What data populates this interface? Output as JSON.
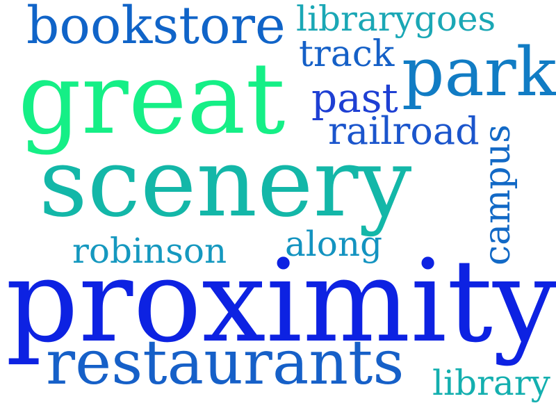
{
  "word_cloud": {
    "words": {
      "bookstore": {
        "text": "bookstore",
        "color": "#1064C8"
      },
      "librarygoes": {
        "text": "librarygoes",
        "color": "#1AA7B5"
      },
      "track": {
        "text": "track",
        "color": "#1560C7"
      },
      "park": {
        "text": "park",
        "color": "#117CC4"
      },
      "great": {
        "text": "great",
        "color": "#15EF86"
      },
      "past": {
        "text": "past",
        "color": "#1E3FD3"
      },
      "railroad": {
        "text": "railroad",
        "color": "#1B55CC"
      },
      "campus": {
        "text": "campus",
        "color": "#1269C6"
      },
      "scenery": {
        "text": "scenery",
        "color": "#13B7A8"
      },
      "robinson": {
        "text": "robinson",
        "color": "#1598BF"
      },
      "along": {
        "text": "along",
        "color": "#1393C0"
      },
      "proximity": {
        "text": "proximity",
        "color": "#0D22E2"
      },
      "restaurants": {
        "text": "restaurants",
        "color": "#1660C8"
      },
      "library": {
        "text": "library",
        "color": "#14AFAF"
      }
    }
  }
}
